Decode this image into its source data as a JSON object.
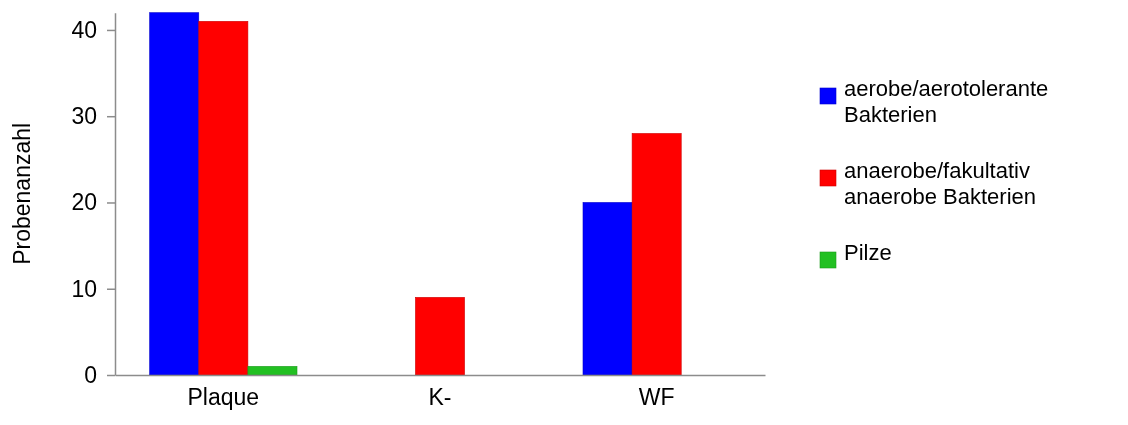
{
  "chart_data": {
    "type": "bar",
    "ylabel": "Probenanzahl",
    "categories": [
      "Plaque",
      "K-",
      "WF"
    ],
    "series": [
      {
        "name": "aerobe/aerotolerante Bakterien",
        "color": "#0000ff",
        "values": [
          42,
          null,
          20
        ]
      },
      {
        "name": "anaerobe/fakultativ anaerobe Bakterien",
        "color": "#ff0000",
        "values": [
          41,
          9,
          28
        ]
      },
      {
        "name": "Pilze",
        "color": "#22c022",
        "values": [
          1,
          null,
          null
        ]
      }
    ],
    "ylim": [
      0,
      42
    ],
    "yticks": [
      0,
      10,
      20,
      30,
      40
    ],
    "legend": "right"
  }
}
